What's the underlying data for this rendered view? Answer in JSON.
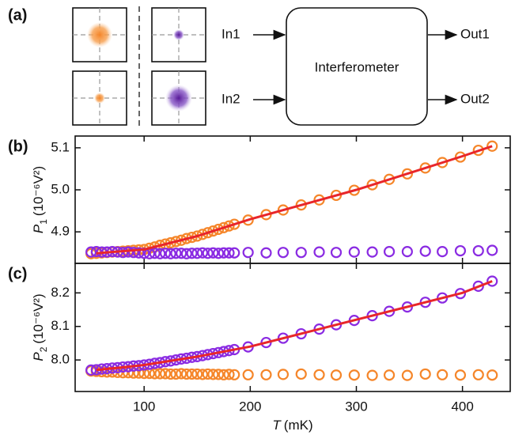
{
  "diagram": {
    "panel": "(a)",
    "inputs": [
      "In1",
      "In2"
    ],
    "box": "Interferometer",
    "outputs": [
      "Out1",
      "Out2"
    ]
  },
  "chart_data": [
    {
      "type": "scatter",
      "panel": "(b)",
      "y_label": {
        "symbol": "P",
        "index": "1",
        "unit": "(10⁻⁶V²)"
      },
      "xlim": [
        35,
        445
      ],
      "xticks": [
        100,
        200,
        300,
        400
      ],
      "ylim": [
        4.825,
        5.128
      ],
      "yticks": [
        4.9,
        {
          "value": 5,
          "label": "5.0"
        },
        5.1
      ],
      "x": [
        50,
        55,
        60,
        65,
        70,
        75,
        80,
        85,
        90,
        95,
        100,
        105,
        110,
        115,
        120,
        125,
        130,
        135,
        140,
        145,
        150,
        155,
        160,
        165,
        170,
        175,
        180,
        185,
        198,
        215,
        231,
        248,
        265,
        281,
        298,
        315,
        331,
        348,
        365,
        381,
        398,
        415,
        428
      ],
      "series": [
        {
          "color": "#f5862a",
          "values": [
            4.848,
            4.849,
            4.85,
            4.851,
            4.852,
            4.853,
            4.854,
            4.855,
            4.856,
            4.857,
            4.858,
            4.861,
            4.864,
            4.868,
            4.871,
            4.874,
            4.877,
            4.88,
            4.884,
            4.887,
            4.89,
            4.894,
            4.898,
            4.902,
            4.906,
            4.91,
            4.914,
            4.918,
            4.928,
            4.941,
            4.952,
            4.964,
            4.976,
            4.987,
            4.999,
            5.012,
            5.025,
            5.038,
            5.052,
            5.065,
            5.078,
            5.094,
            5.104
          ]
        },
        {
          "color": "#8a2be2",
          "values": [
            4.852,
            4.853,
            4.852,
            4.852,
            4.853,
            4.852,
            4.851,
            4.852,
            4.851,
            4.85,
            4.849,
            4.848,
            4.849,
            4.848,
            4.849,
            4.848,
            4.849,
            4.849,
            4.848,
            4.849,
            4.849,
            4.85,
            4.849,
            4.85,
            4.849,
            4.85,
            4.85,
            4.85,
            4.851,
            4.85,
            4.851,
            4.851,
            4.852,
            4.851,
            4.852,
            4.852,
            4.853,
            4.853,
            4.854,
            4.853,
            4.855,
            4.855,
            4.856
          ]
        }
      ],
      "fit": {
        "color": "#e8262a",
        "x": [
          55,
          100,
          150,
          200,
          250,
          300,
          350,
          400,
          428
        ],
        "values": [
          4.849,
          4.858,
          4.89,
          4.93,
          4.965,
          5.0,
          5.04,
          5.08,
          5.104
        ]
      }
    },
    {
      "type": "scatter",
      "panel": "(c)",
      "y_label": {
        "symbol": "P",
        "index": "2",
        "unit": "(10⁻⁶V²)"
      },
      "x_label": {
        "symbol": "T",
        "unit": "(mK)"
      },
      "xlim": [
        35,
        445
      ],
      "xticks": [
        100,
        200,
        300,
        400
      ],
      "ylim": [
        7.906,
        8.288
      ],
      "yticks": [
        {
          "value": 8,
          "label": "8.0"
        },
        8.1,
        8.2
      ],
      "x": [
        50,
        55,
        60,
        65,
        70,
        75,
        80,
        85,
        90,
        95,
        100,
        105,
        110,
        115,
        120,
        125,
        130,
        135,
        140,
        145,
        150,
        155,
        160,
        165,
        170,
        175,
        180,
        185,
        198,
        215,
        231,
        248,
        265,
        281,
        298,
        315,
        331,
        348,
        365,
        381,
        398,
        415,
        428
      ],
      "series": [
        {
          "color": "#f5862a",
          "values": [
            7.967,
            7.966,
            7.965,
            7.964,
            7.964,
            7.963,
            7.962,
            7.962,
            7.961,
            7.961,
            7.96,
            7.96,
            7.959,
            7.959,
            7.959,
            7.958,
            7.958,
            7.959,
            7.958,
            7.958,
            7.958,
            7.957,
            7.958,
            7.957,
            7.957,
            7.956,
            7.957,
            7.956,
            7.956,
            7.956,
            7.957,
            7.958,
            7.956,
            7.955,
            7.955,
            7.954,
            7.955,
            7.954,
            7.958,
            7.956,
            7.955,
            7.956,
            7.955
          ]
        },
        {
          "color": "#8a2be2",
          "values": [
            7.97,
            7.971,
            7.973,
            7.974,
            7.976,
            7.977,
            7.979,
            7.98,
            7.982,
            7.983,
            7.985,
            7.987,
            7.99,
            7.992,
            7.995,
            7.997,
            8.0,
            8.003,
            8.005,
            8.008,
            8.01,
            8.013,
            8.016,
            8.019,
            8.022,
            8.025,
            8.028,
            8.031,
            8.039,
            8.052,
            8.065,
            8.078,
            8.092,
            8.105,
            8.118,
            8.132,
            8.145,
            8.158,
            8.172,
            8.185,
            8.198,
            8.22,
            8.235
          ]
        }
      ],
      "fit": {
        "color": "#e8262a",
        "x": [
          55,
          100,
          150,
          200,
          250,
          300,
          350,
          400,
          428
        ],
        "values": [
          7.97,
          7.985,
          8.01,
          8.04,
          8.08,
          8.12,
          8.16,
          8.2,
          8.235
        ]
      }
    }
  ]
}
